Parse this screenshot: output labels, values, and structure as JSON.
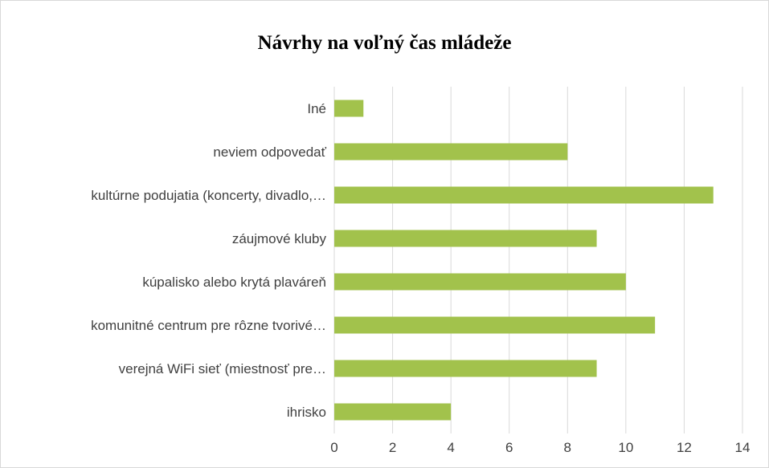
{
  "chart_data": {
    "type": "bar",
    "orientation": "horizontal",
    "title": "Návrhy na voľný čas mládeže",
    "categories": [
      "Iné",
      "neviem odpovedať",
      "kultúrne podujatia (koncerty, divadlo,…",
      "záujmové kluby",
      "kúpalisko alebo krytá plaváreň",
      "komunitné centrum pre rôzne tvorivé…",
      "verejná WiFi sieť (miestnosť pre…",
      "ihrisko"
    ],
    "values": [
      1,
      8,
      13,
      9,
      10,
      11,
      9,
      4
    ],
    "xlim": [
      0,
      14
    ],
    "xticks": [
      0,
      2,
      4,
      6,
      8,
      10,
      12,
      14
    ],
    "grid": true,
    "legend": "none",
    "bar_color": "#a2c24c",
    "grid_color": "#d9d9d9"
  }
}
